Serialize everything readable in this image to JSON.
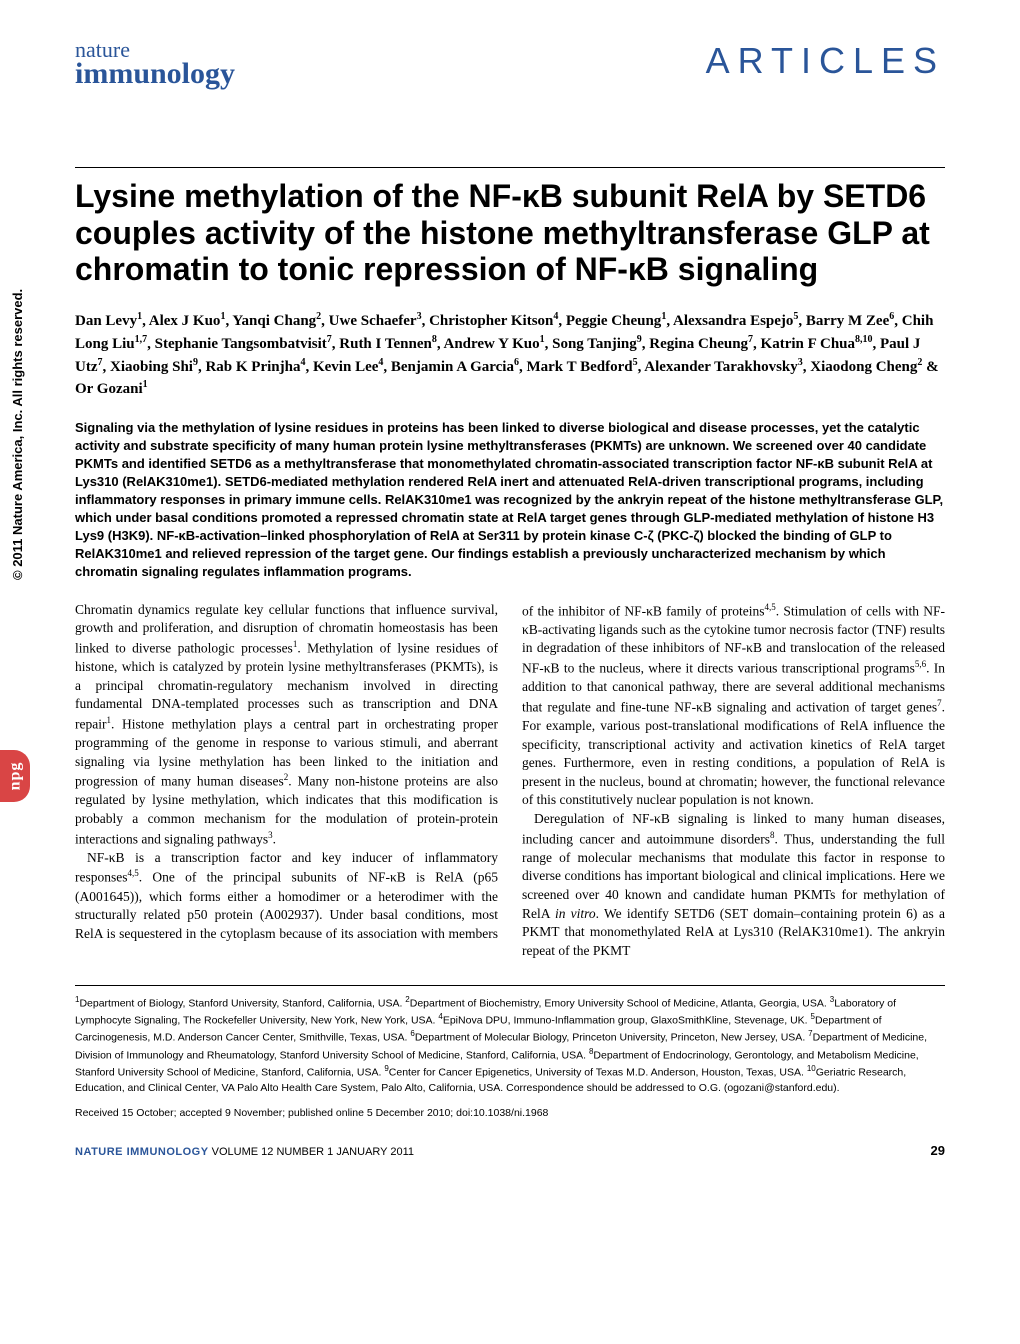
{
  "journal": {
    "name_top": "nature",
    "name_bottom": "immunology",
    "section": "ARTICLES",
    "color": "#2a5599"
  },
  "title": "Lysine methylation of the NF-κB subunit RelA by SETD6 couples activity of the histone methyltransferase GLP at chromatin to tonic repression of NF-κB signaling",
  "authors_html": "Dan Levy<sup>1</sup>, Alex J Kuo<sup>1</sup>, Yanqi Chang<sup>2</sup>, Uwe Schaefer<sup>3</sup>, Christopher Kitson<sup>4</sup>, Peggie Cheung<sup>1</sup>, Alexsandra Espejo<sup>5</sup>, Barry M Zee<sup>6</sup>, Chih Long Liu<sup>1,7</sup>, Stephanie Tangsombatvisit<sup>7</sup>, Ruth I Tennen<sup>8</sup>, Andrew Y Kuo<sup>1</sup>, Song Tanjing<sup>9</sup>, Regina Cheung<sup>7</sup>, Katrin F Chua<sup>8,10</sup>, Paul J Utz<sup>7</sup>, Xiaobing Shi<sup>9</sup>, Rab K Prinjha<sup>4</sup>, Kevin Lee<sup>4</sup>, Benjamin A Garcia<sup>6</sup>, Mark T Bedford<sup>5</sup>, Alexander Tarakhovsky<sup>3</sup>, Xiaodong Cheng<sup>2</sup> & Or Gozani<sup>1</sup>",
  "abstract": "Signaling via the methylation of lysine residues in proteins has been linked to diverse biological and disease processes, yet the catalytic activity and substrate specificity of many human protein lysine methyltransferases (PKMTs) are unknown. We screened over 40 candidate PKMTs and identified SETD6 as a methyltransferase that monomethylated chromatin-associated transcription factor NF-κB subunit RelA at Lys310 (RelAK310me1). SETD6-mediated methylation rendered RelA inert and attenuated RelA-driven transcriptional programs, including inflammatory responses in primary immune cells. RelAK310me1 was recognized by the ankryin repeat of the histone methyltransferase GLP, which under basal conditions promoted a repressed chromatin state at RelA target genes through GLP-mediated methylation of histone H3 Lys9 (H3K9). NF-κB-activation–linked phosphorylation of RelA at Ser311 by protein kinase C-ζ (PKC-ζ) blocked the binding of GLP to RelAK310me1 and relieved repression of the target gene. Our findings establish a previously uncharacterized mechanism by which chromatin signaling regulates inflammation programs.",
  "body": {
    "p1_html": "Chromatin dynamics regulate key cellular functions that influence survival, growth and proliferation, and disruption of chromatin homeostasis has been linked to diverse pathologic processes<sup>1</sup>. Methylation of lysine residues of histone, which is catalyzed by protein lysine methyltransferases (PKMTs), is a principal chromatin-regulatory mechanism involved in directing fundamental DNA-templated processes such as transcription and DNA repair<sup>1</sup>. Histone methylation plays a central part in orchestrating proper programming of the genome in response to various stimuli, and aberrant signaling via lysine methylation has been linked to the initiation and progression of many human diseases<sup>2</sup>. Many non-histone proteins are also regulated by lysine methylation, which indicates that this modification is probably a common mechanism for the modulation of protein-protein interactions and signaling pathways<sup>3</sup>.",
    "p2_html": "NF-κB is a transcription factor and key inducer of inflammatory responses<sup>4,5</sup>. One of the principal subunits of NF-κB is RelA (p65 (A001645)), which forms either a homodimer or a heterodimer with the structurally related p50 protein (A002937). Under basal conditions, most RelA is sequestered in the cytoplasm because of its association with members of the inhibitor of NF-κB family of proteins<sup>4,5</sup>. Stimulation of cells with NF-κB-activating ligands such as the cytokine tumor necrosis factor (TNF) results in degradation of these inhibitors of NF-κB and translocation of the released NF-κB to the nucleus, where it directs various transcriptional programs<sup>5,6</sup>. In addition to that canonical pathway, there are several additional mechanisms that regulate and fine-tune NF-κB signaling and activation of target genes<sup>7</sup>. For example, various post-translational modifications of RelA influence the specificity, transcriptional activity and activation kinetics of RelA target genes. Furthermore, even in resting conditions, a population of RelA is present in the nucleus, bound at chromatin; however, the functional relevance of this constitutively nuclear population is not known.",
    "p3_html": "Deregulation of NF-κB signaling is linked to many human diseases, including cancer and autoimmune disorders<sup>8</sup>. Thus, understanding the full range of molecular mechanisms that modulate this factor in response to diverse conditions has important biological and clinical implications. Here we screened over 40 known and candidate human PKMTs for methylation of RelA <i>in vitro</i>. We identify SETD6 (SET domain–containing protein 6) as a PKMT that monomethylated RelA at Lys310 (RelAK310me1). The ankryin repeat of the PKMT"
  },
  "affiliations_html": "<sup>1</sup>Department of Biology, Stanford University, Stanford, California, USA. <sup>2</sup>Department of Biochemistry, Emory University School of Medicine, Atlanta, Georgia, USA. <sup>3</sup>Laboratory of Lymphocyte Signaling, The Rockefeller University, New York, New York, USA. <sup>4</sup>EpiNova DPU, Immuno-Inflammation group, GlaxoSmithKline, Stevenage, UK. <sup>5</sup>Department of Carcinogenesis, M.D. Anderson Cancer Center, Smithville, Texas, USA. <sup>6</sup>Department of Molecular Biology, Princeton University, Princeton, New Jersey, USA. <sup>7</sup>Department of Medicine, Division of Immunology and Rheumatology, Stanford University School of Medicine, Stanford, California, USA. <sup>8</sup>Department of Endocrinology, Gerontology, and Metabolism Medicine, Stanford University School of Medicine, Stanford, California, USA. <sup>9</sup>Center for Cancer Epigenetics, University of Texas M.D. Anderson, Houston, Texas, USA. <sup>10</sup>Geriatric Research, Education, and Clinical Center, VA Palo Alto Health Care System, Palo Alto, California, USA. Correspondence should be addressed to O.G. (ogozani@stanford.edu).",
  "dates": "Received 15 October; accepted 9 November; published online 5 December 2010; doi:10.1038/ni.1968",
  "footer": {
    "journal": "NATURE IMMUNOLOGY",
    "issue": "VOLUME 12   NUMBER 1   JANUARY 2011",
    "page": "29"
  },
  "copyright": "© 2011 Nature America, Inc.  All rights reserved.",
  "npg": "npg"
}
